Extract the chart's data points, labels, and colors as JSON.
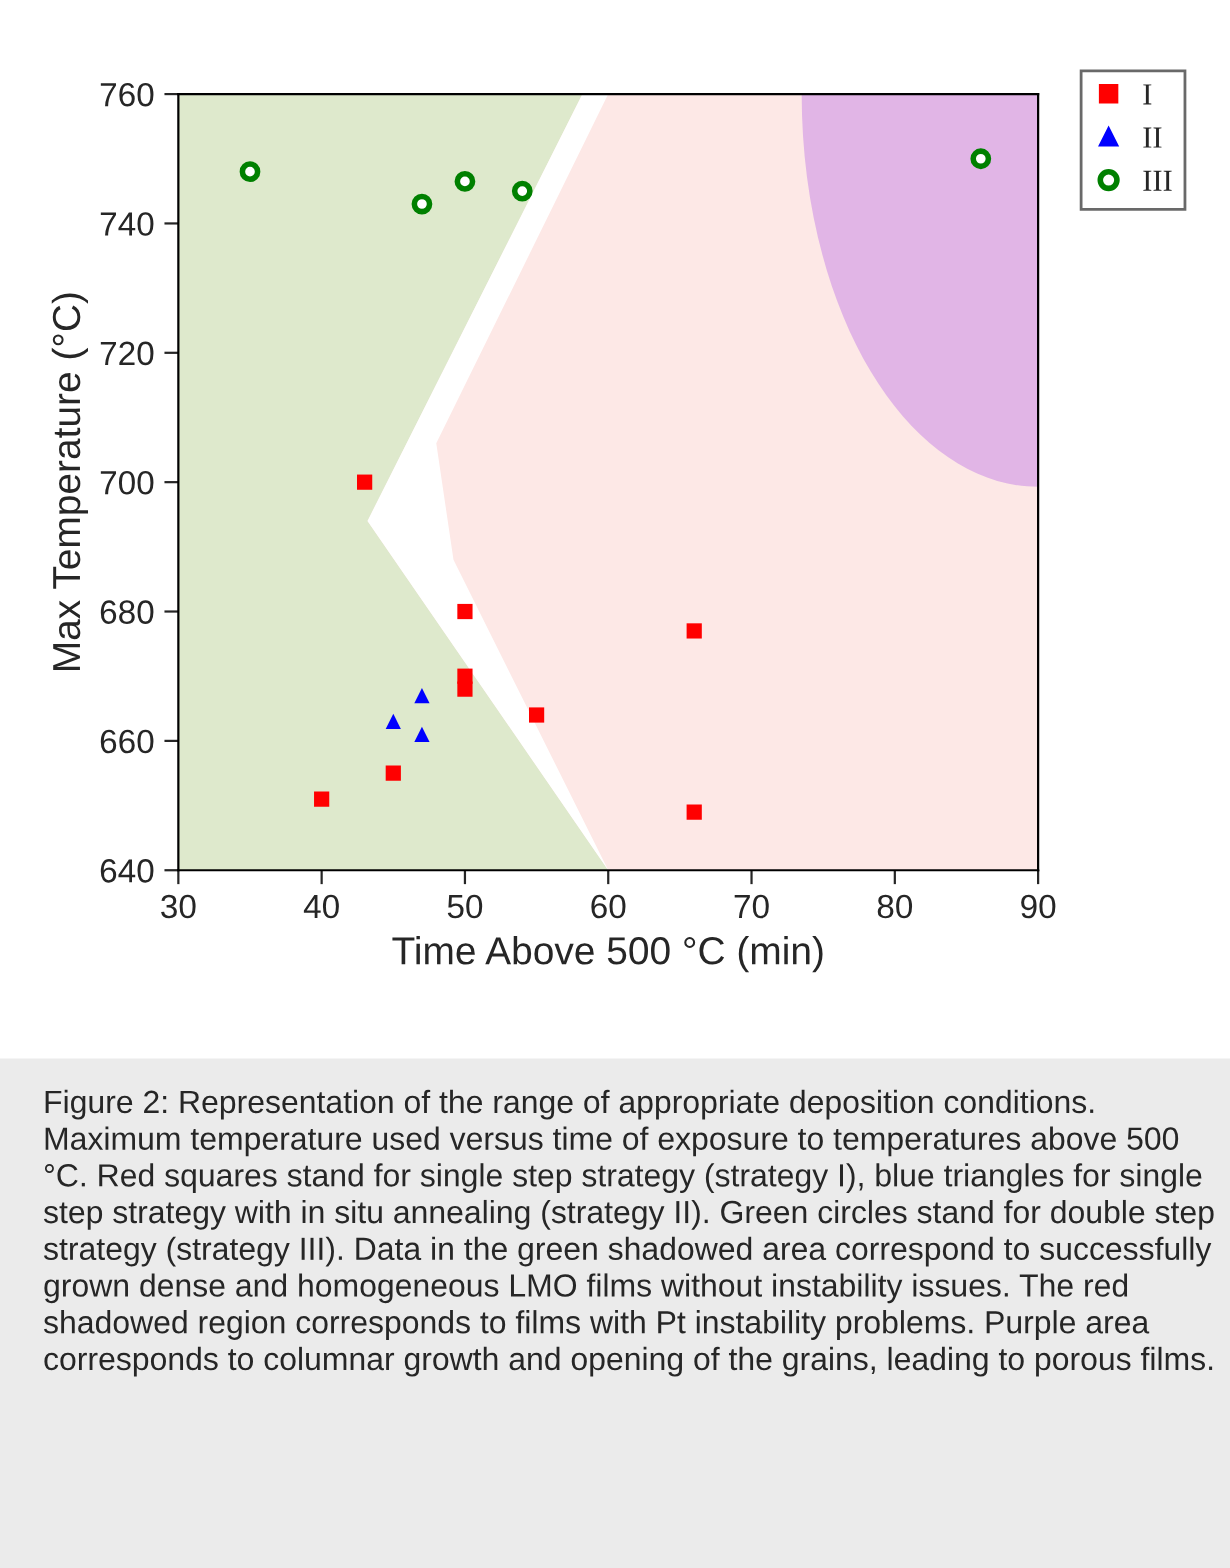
{
  "chart_data": {
    "type": "scatter",
    "xlabel": "Time Above 500 °C (min)",
    "ylabel": "Max Temperature (°C)",
    "xlim": [
      30,
      90
    ],
    "xticks": [
      30,
      40,
      50,
      60,
      70,
      80,
      90
    ],
    "ylim": [
      640,
      760
    ],
    "yticks": [
      640,
      660,
      680,
      700,
      720,
      740,
      760
    ],
    "grid": false,
    "legend": "top right",
    "series": [
      {
        "name": "I",
        "color": "#ff0000",
        "marker": "square",
        "x": [
          43,
          50,
          50,
          50,
          55,
          66,
          66,
          45,
          40
        ],
        "values": [
          700,
          680,
          670,
          668,
          664,
          677,
          649,
          655,
          651
        ]
      },
      {
        "name": "II",
        "color": "#0000ff",
        "marker": "triangle",
        "x": [
          45,
          47,
          47
        ],
        "values": [
          663,
          667,
          661
        ]
      },
      {
        "name": "III",
        "color": "#008000",
        "marker": "circle",
        "x": [
          35,
          47,
          50,
          54,
          86
        ],
        "values": [
          748,
          743,
          746.5,
          745,
          750
        ]
      }
    ],
    "annotations": [
      "Figure 2: Representation of the range of appropriate deposition conditions. Maximum temperature used versus time of exposure to temperatures above 500 °C. Red squares stand for single step strategy (strategy I), blue triangles for single step strategy with in situ annealing (strategy II). Green circles stand for double step strategy (strategy III). Data in the green shadowed area correspond to successfully grown dense and homogeneous LMO films without instability issues. The red shadowed region corresponds to films with Pt instability problems. Purple area corresponds to columnar growth and opening of the grains, leading to porous films."
    ]
  }
}
